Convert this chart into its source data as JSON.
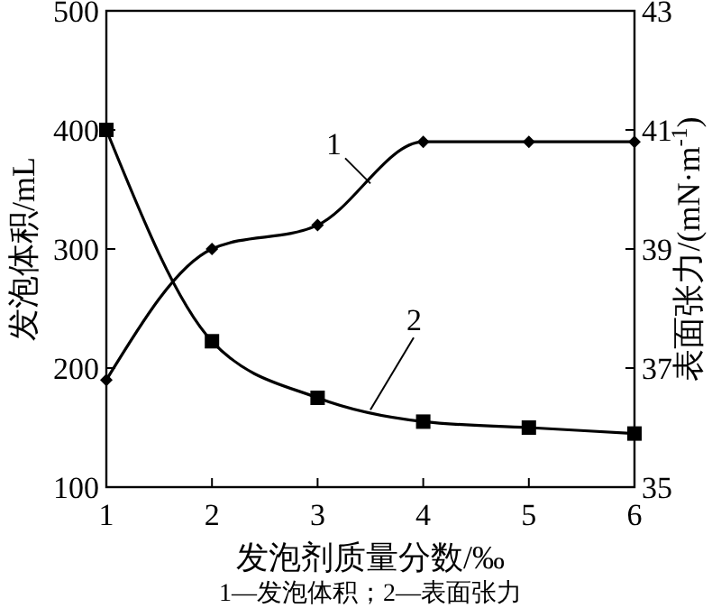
{
  "chart_data": {
    "type": "line",
    "xlabel": "发泡剂质量分数/‰",
    "ylabel": "发泡体积/mL",
    "y2label": "表面张力/(mN·m$^{-1}$)",
    "x": [
      1,
      2,
      3,
      4,
      5,
      6
    ],
    "xlim": [
      1,
      6
    ],
    "xticks": [
      1,
      2,
      3,
      4,
      5,
      6
    ],
    "ylim": [
      100,
      500
    ],
    "yticks": [
      100,
      200,
      300,
      400,
      500
    ],
    "y2lim": [
      35,
      43
    ],
    "y2ticks": [
      35,
      37,
      39,
      41,
      43
    ],
    "line_style": "solid",
    "series": [
      {
        "name": "1",
        "color": "#000000",
        "marker": "diamond",
        "values": [
          190,
          300,
          320,
          390,
          390,
          390
        ]
      },
      {
        "name": "2",
        "color": "#000000",
        "marker": "square",
        "axis": "y2",
        "values": [
          41,
          37.45,
          36.5,
          36.1,
          36.0,
          35.9
        ]
      }
    ],
    "annotations": [
      "1—发泡体积；2—表面张力"
    ]
  }
}
